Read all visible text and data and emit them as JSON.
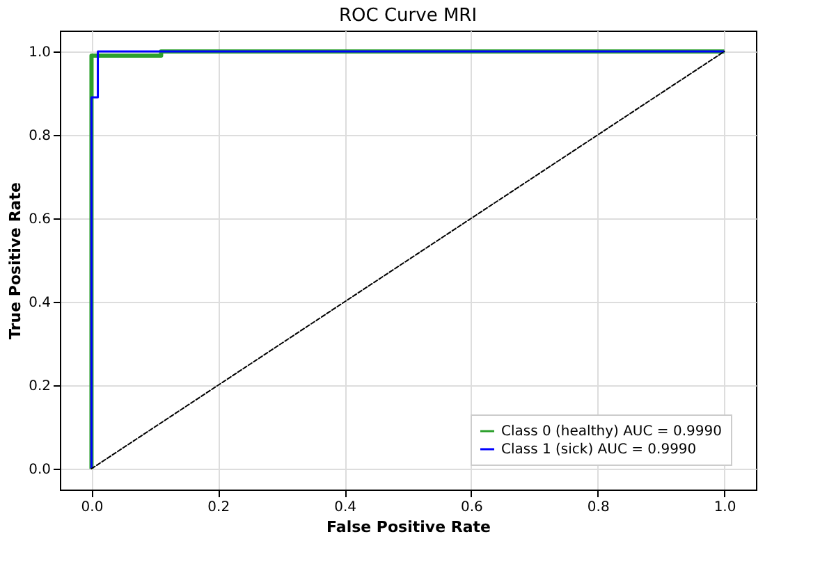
{
  "chart_data": {
    "type": "line",
    "title": "ROC Curve MRI",
    "xlabel": "False Positive Rate",
    "ylabel": "True Positive Rate",
    "xlim": [
      -0.05,
      1.05
    ],
    "ylim": [
      -0.05,
      1.05
    ],
    "xticks": [
      {
        "value": 0,
        "label": "0.0"
      },
      {
        "value": 0.2,
        "label": "0.2"
      },
      {
        "value": 0.4,
        "label": "0.4"
      },
      {
        "value": 0.6,
        "label": "0.6"
      },
      {
        "value": 0.8,
        "label": "0.8"
      },
      {
        "value": 1,
        "label": "1.0"
      }
    ],
    "yticks": [
      {
        "value": 0,
        "label": "0.0"
      },
      {
        "value": 0.2,
        "label": "0.2"
      },
      {
        "value": 0.4,
        "label": "0.4"
      },
      {
        "value": 0.6,
        "label": "0.6"
      },
      {
        "value": 0.8,
        "label": "0.8"
      },
      {
        "value": 1,
        "label": "1.0"
      }
    ],
    "grid": true,
    "legend": "bottom right",
    "line_style": "solid",
    "series": [
      {
        "name": "Class 0 (healthy) AUC = 0.9990",
        "color": "#2ca02c",
        "x": [
          0,
          0,
          0.11,
          0.11,
          1
        ],
        "values": [
          0,
          0.99,
          0.99,
          1,
          1
        ]
      },
      {
        "name": "Class 1 (sick) AUC = 0.9990",
        "color": "#0000ff",
        "x": [
          0,
          0,
          0.01,
          0.01,
          1
        ],
        "values": [
          0,
          0.89,
          0.89,
          1,
          1
        ]
      },
      {
        "color": "#000000",
        "line_style": "dashed",
        "x": [
          0,
          1
        ],
        "values": [
          0,
          1
        ]
      }
    ]
  }
}
